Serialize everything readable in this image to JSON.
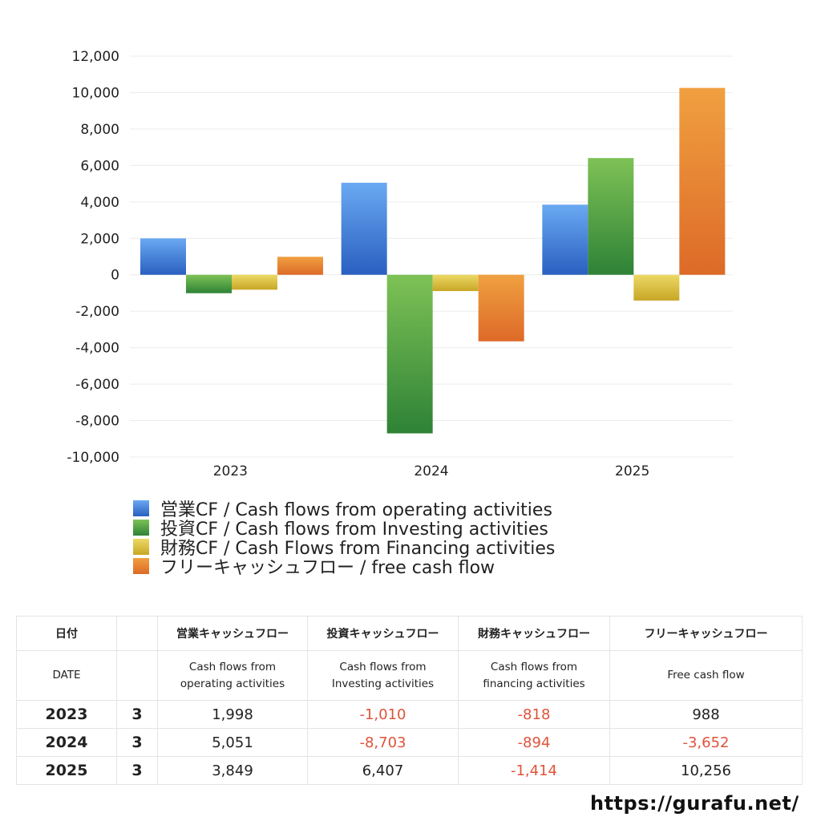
{
  "chart_data": {
    "type": "bar",
    "categories": [
      "2023",
      "2024",
      "2025"
    ],
    "series": [
      {
        "name": "営業CF / Cash flows from operating activities",
        "values": [
          1998,
          5051,
          3849
        ]
      },
      {
        "name": "投資CF / Cash flows from Investing activities",
        "values": [
          -1010,
          -8703,
          6407
        ]
      },
      {
        "name": "財務CF / Cash Flows from Financing activities",
        "values": [
          -818,
          -894,
          -1414
        ]
      },
      {
        "name": "フリーキャッシュフロー / free cash flow",
        "values": [
          988,
          -3652,
          10256
        ]
      }
    ],
    "ylim": [
      -10000,
      12000
    ],
    "yticks": [
      "12,000",
      "10,000",
      "8,000",
      "6,000",
      "4,000",
      "2,000",
      "0",
      "-2,000",
      "-4,000",
      "-6,000",
      "-8,000",
      "-10,000"
    ],
    "grid": true,
    "legend_position": "bottom-left",
    "colors": {
      "operating": [
        "#6aa9f2",
        "#2a5fc0"
      ],
      "investing": [
        "#7ec256",
        "#2e8236"
      ],
      "financing": [
        "#ecd965",
        "#c8a626"
      ],
      "free": [
        "#f0a040",
        "#dd6a28"
      ]
    }
  },
  "table": {
    "header_jp": [
      "日付",
      "",
      "営業キャッシュフロー",
      "投資キャッシュフロー",
      "財務キャッシュフロー",
      "フリーキャッシュフロー"
    ],
    "header_en": [
      "DATE",
      "",
      "Cash flows from\noperating activities",
      "Cash flows from\nInvesting activities",
      "Cash flows from\nfinancing activities",
      "Free cash flow"
    ],
    "rows": [
      {
        "year": "2023",
        "month": "3",
        "values": [
          "1,998",
          "-1,010",
          "-818",
          "988"
        ]
      },
      {
        "year": "2024",
        "month": "3",
        "values": [
          "5,051",
          "-8,703",
          "-894",
          "-3,652"
        ]
      },
      {
        "year": "2025",
        "month": "3",
        "values": [
          "3,849",
          "6,407",
          "-1,414",
          "10,256"
        ]
      }
    ]
  },
  "site_url": "https://gurafu.net/"
}
